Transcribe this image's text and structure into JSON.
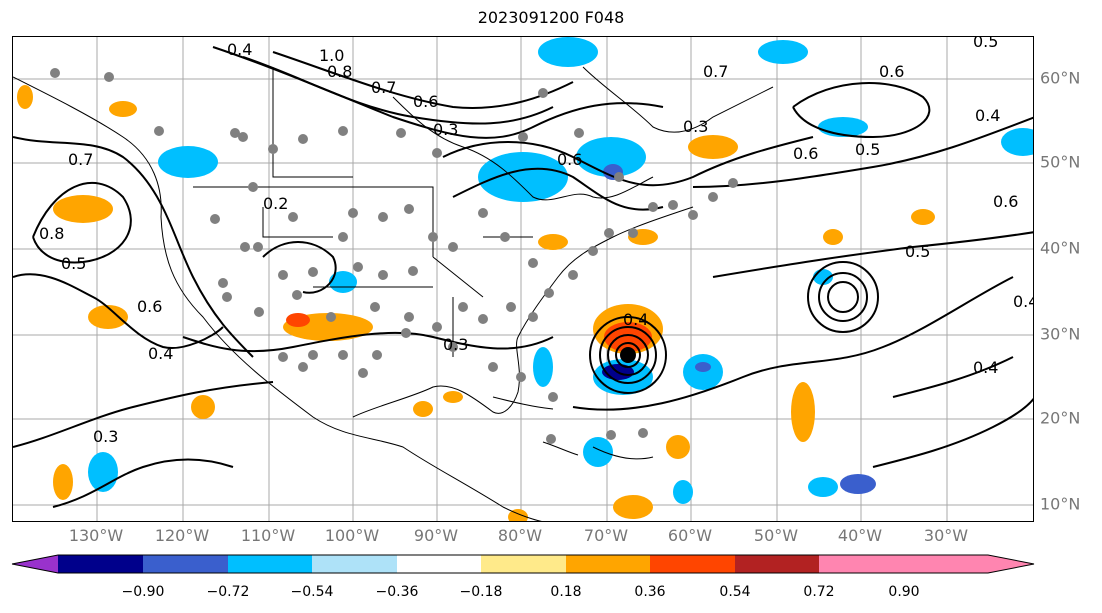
{
  "title": "2023091200 F048",
  "lon_labels": [
    "130°W",
    "120°W",
    "110°W",
    "100°W",
    "90°W",
    "80°W",
    "70°W",
    "60°W",
    "50°W",
    "40°W",
    "30°W"
  ],
  "lat_labels": [
    "60°N",
    "50°N",
    "40°N",
    "30°N",
    "20°N",
    "10°N"
  ],
  "contour_labels": [
    "0.4",
    "1.0",
    "0.8",
    "0.7",
    "0.6",
    "0.5",
    "0.3",
    "0.2",
    "0.4",
    "0.5",
    "0.6",
    "0.7",
    "0.8",
    "0.3"
  ],
  "colorbar": {
    "ticks": [
      "−0.90",
      "−0.72",
      "−0.54",
      "−0.36",
      "−0.18",
      "0.18",
      "0.36",
      "0.54",
      "0.72",
      "0.90"
    ],
    "colors": [
      "#9932cc",
      "#00008b",
      "#3a5fcd",
      "#00bfff",
      "#aee2f8",
      "#ffffff",
      "#ffea8a",
      "#ffa500",
      "#ff4500",
      "#b22222",
      "#ff85b0"
    ]
  },
  "colors": {
    "land_line": "#000000",
    "grid": "#a9a9a9",
    "obs_dot": "#808080"
  }
}
